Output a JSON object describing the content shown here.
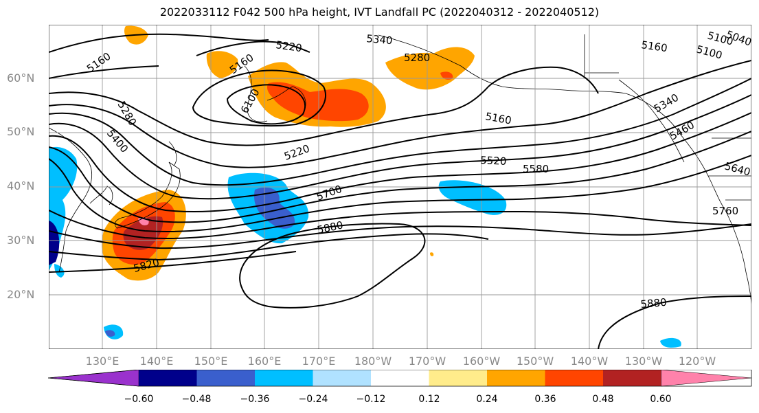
{
  "title": "2022033112 F042 500 hPa height, IVT Landfall PC (2022040312 - 2022040512)",
  "lat_labels": [
    "60°N",
    "50°N",
    "40°N",
    "30°N",
    "20°N"
  ],
  "lon_labels": [
    "130°E",
    "140°E",
    "150°E",
    "160°E",
    "170°E",
    "180°W",
    "170°W",
    "160°W",
    "150°W",
    "140°W",
    "130°W",
    "120°W"
  ],
  "contour_labels": [
    "5160",
    "5220",
    "5340",
    "5280",
    "5160",
    "5100",
    "5160",
    "5100",
    "5040",
    "5280",
    "5400",
    "6100",
    "5160",
    "5220",
    "5340",
    "5460",
    "5520",
    "5580",
    "5640",
    "5700",
    "5880",
    "5820",
    "5760",
    "5880"
  ],
  "colorbar": {
    "ticks": [
      "−0.60",
      "−0.48",
      "−0.36",
      "−0.24",
      "−0.12",
      "0.12",
      "0.24",
      "0.36",
      "0.48",
      "0.60"
    ],
    "colors": [
      "#9a32cd",
      "#00008b",
      "#3a5fcd",
      "#00bfff",
      "#b0e2ff",
      "#ffffff",
      "#ffec8b",
      "#ffa500",
      "#ff4500",
      "#b22222",
      "#ff82ab"
    ]
  }
}
